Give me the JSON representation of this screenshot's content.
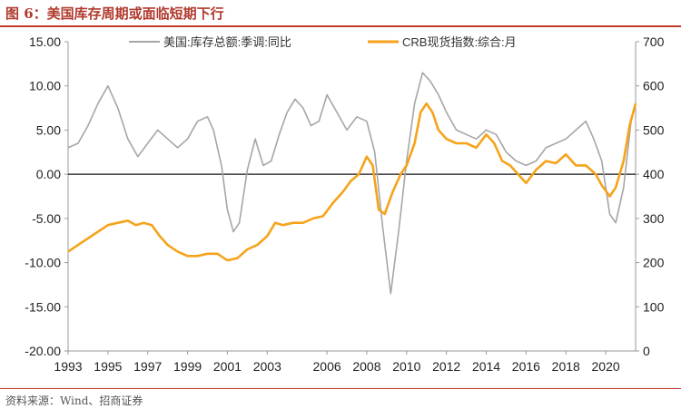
{
  "title": "图 6：美国库存周期或面临短期下行",
  "source": "资料来源：Wind、招商证券",
  "chart_data": {
    "type": "line",
    "x_ticks": [
      "1993",
      "1995",
      "1997",
      "1999",
      "2001",
      "2003",
      "2006",
      "2008",
      "2010",
      "2012",
      "2014",
      "2016",
      "2018",
      "2020"
    ],
    "y_left": {
      "min": -20,
      "max": 15,
      "ticks": [
        "15.00",
        "10.00",
        "5.00",
        "0.00",
        "-5.00",
        "-10.00",
        "-15.00",
        "-20.00"
      ]
    },
    "y_right": {
      "min": 0,
      "max": 700,
      "ticks": [
        "700",
        "600",
        "500",
        "400",
        "300",
        "200",
        "100",
        "0"
      ]
    },
    "zero_line": 0,
    "series": [
      {
        "name": "美国:库存总额:季调:同比",
        "axis": "left",
        "color": "#a6a6a6",
        "points": [
          [
            1993.0,
            3.0
          ],
          [
            1993.5,
            3.5
          ],
          [
            1994.0,
            5.5
          ],
          [
            1994.5,
            8.0
          ],
          [
            1995.0,
            10.0
          ],
          [
            1995.5,
            7.5
          ],
          [
            1996.0,
            4.0
          ],
          [
            1996.5,
            2.0
          ],
          [
            1997.0,
            3.5
          ],
          [
            1997.5,
            5.0
          ],
          [
            1998.0,
            4.0
          ],
          [
            1998.5,
            3.0
          ],
          [
            1999.0,
            4.0
          ],
          [
            1999.5,
            6.0
          ],
          [
            2000.0,
            6.5
          ],
          [
            2000.3,
            5.0
          ],
          [
            2000.7,
            1.0
          ],
          [
            2001.0,
            -4.0
          ],
          [
            2001.3,
            -6.5
          ],
          [
            2001.6,
            -5.5
          ],
          [
            2002.0,
            0.5
          ],
          [
            2002.4,
            4.0
          ],
          [
            2002.8,
            1.0
          ],
          [
            2003.2,
            1.5
          ],
          [
            2003.6,
            4.5
          ],
          [
            2004.0,
            7.0
          ],
          [
            2004.4,
            8.5
          ],
          [
            2004.8,
            7.5
          ],
          [
            2005.2,
            5.5
          ],
          [
            2005.6,
            6.0
          ],
          [
            2006.0,
            9.0
          ],
          [
            2006.5,
            7.0
          ],
          [
            2007.0,
            5.0
          ],
          [
            2007.5,
            6.5
          ],
          [
            2008.0,
            6.0
          ],
          [
            2008.4,
            2.5
          ],
          [
            2008.8,
            -6.0
          ],
          [
            2009.2,
            -13.5
          ],
          [
            2009.6,
            -6.5
          ],
          [
            2010.0,
            1.5
          ],
          [
            2010.4,
            8.0
          ],
          [
            2010.8,
            11.5
          ],
          [
            2011.2,
            10.5
          ],
          [
            2011.6,
            9.0
          ],
          [
            2012.0,
            7.0
          ],
          [
            2012.5,
            5.0
          ],
          [
            2013.0,
            4.5
          ],
          [
            2013.5,
            4.0
          ],
          [
            2014.0,
            5.0
          ],
          [
            2014.5,
            4.5
          ],
          [
            2015.0,
            2.5
          ],
          [
            2015.5,
            1.5
          ],
          [
            2016.0,
            1.0
          ],
          [
            2016.5,
            1.5
          ],
          [
            2017.0,
            3.0
          ],
          [
            2017.5,
            3.5
          ],
          [
            2018.0,
            4.0
          ],
          [
            2018.5,
            5.0
          ],
          [
            2019.0,
            6.0
          ],
          [
            2019.4,
            4.0
          ],
          [
            2019.8,
            1.5
          ],
          [
            2020.2,
            -4.5
          ],
          [
            2020.5,
            -5.5
          ],
          [
            2020.9,
            -1.5
          ],
          [
            2021.3,
            6.5
          ],
          [
            2021.5,
            7.5
          ]
        ]
      },
      {
        "name": "CRB现货指数:综合:月",
        "axis": "right",
        "color": "#f5a31a",
        "points": [
          [
            1993.0,
            225
          ],
          [
            1993.5,
            240
          ],
          [
            1994.0,
            255
          ],
          [
            1994.5,
            270
          ],
          [
            1995.0,
            285
          ],
          [
            1995.5,
            290
          ],
          [
            1996.0,
            295
          ],
          [
            1996.4,
            285
          ],
          [
            1996.8,
            290
          ],
          [
            1997.2,
            285
          ],
          [
            1997.6,
            260
          ],
          [
            1998.0,
            240
          ],
          [
            1998.5,
            225
          ],
          [
            1999.0,
            215
          ],
          [
            1999.5,
            215
          ],
          [
            2000.0,
            220
          ],
          [
            2000.5,
            220
          ],
          [
            2001.0,
            205
          ],
          [
            2001.5,
            210
          ],
          [
            2002.0,
            230
          ],
          [
            2002.5,
            240
          ],
          [
            2003.0,
            260
          ],
          [
            2003.4,
            290
          ],
          [
            2003.8,
            285
          ],
          [
            2004.3,
            290
          ],
          [
            2004.8,
            290
          ],
          [
            2005.3,
            300
          ],
          [
            2005.8,
            305
          ],
          [
            2006.3,
            335
          ],
          [
            2006.8,
            360
          ],
          [
            2007.2,
            385
          ],
          [
            2007.6,
            400
          ],
          [
            2008.0,
            440
          ],
          [
            2008.3,
            420
          ],
          [
            2008.6,
            320
          ],
          [
            2008.9,
            310
          ],
          [
            2009.3,
            360
          ],
          [
            2009.7,
            400
          ],
          [
            2010.0,
            420
          ],
          [
            2010.4,
            470
          ],
          [
            2010.7,
            540
          ],
          [
            2011.0,
            560
          ],
          [
            2011.3,
            540
          ],
          [
            2011.6,
            500
          ],
          [
            2012.0,
            480
          ],
          [
            2012.5,
            470
          ],
          [
            2013.0,
            470
          ],
          [
            2013.5,
            460
          ],
          [
            2014.0,
            490
          ],
          [
            2014.4,
            470
          ],
          [
            2014.8,
            430
          ],
          [
            2015.2,
            420
          ],
          [
            2015.6,
            400
          ],
          [
            2016.0,
            380
          ],
          [
            2016.5,
            410
          ],
          [
            2017.0,
            430
          ],
          [
            2017.5,
            425
          ],
          [
            2018.0,
            445
          ],
          [
            2018.5,
            420
          ],
          [
            2019.0,
            420
          ],
          [
            2019.5,
            400
          ],
          [
            2019.8,
            375
          ],
          [
            2020.2,
            350
          ],
          [
            2020.5,
            370
          ],
          [
            2020.9,
            430
          ],
          [
            2021.2,
            510
          ],
          [
            2021.5,
            560
          ]
        ]
      }
    ]
  }
}
